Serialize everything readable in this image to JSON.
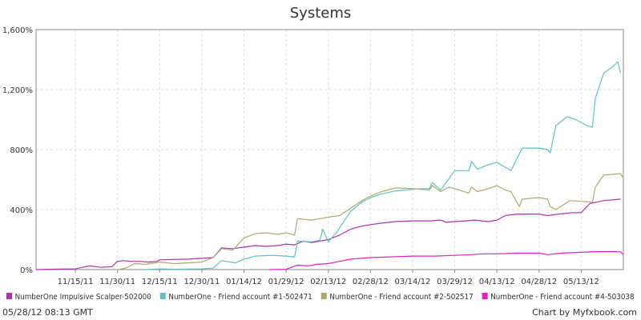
{
  "chart_data": {
    "type": "line",
    "title": "Systems",
    "xlabel": "",
    "ylabel": "",
    "x_tick_labels": [
      "11/15/11",
      "11/30/11",
      "12/15/11",
      "12/30/11",
      "01/14/12",
      "01/29/12",
      "02/13/12",
      "02/28/12",
      "03/14/12",
      "03/29/12",
      "04/13/12",
      "04/28/12",
      "05/13/12"
    ],
    "y_tick_values": [
      0,
      400,
      800,
      1200,
      1600
    ],
    "y_tick_labels": [
      "0%",
      "400%",
      "800%",
      "1,200%",
      "1,600%"
    ],
    "ylim": [
      0,
      1600
    ],
    "x_range": [
      "11/01/11",
      "05/28/12"
    ],
    "grid": true,
    "legend_position": "bottom",
    "series": [
      {
        "name": "NumberOne Impulsive Scalper-502000",
        "color": "#b030b0",
        "points": [
          [
            "11/01/11",
            0
          ],
          [
            "11/05/11",
            2
          ],
          [
            "11/10/11",
            3
          ],
          [
            "11/15/11",
            5
          ],
          [
            "11/20/11",
            25
          ],
          [
            "11/24/11",
            15
          ],
          [
            "11/28/11",
            20
          ],
          [
            "11/30/11",
            55
          ],
          [
            "12/02/11",
            60
          ],
          [
            "12/05/11",
            55
          ],
          [
            "12/08/11",
            55
          ],
          [
            "12/11/11",
            50
          ],
          [
            "12/14/11",
            55
          ],
          [
            "12/15/11",
            65
          ],
          [
            "12/20/11",
            68
          ],
          [
            "12/25/11",
            70
          ],
          [
            "12/30/11",
            75
          ],
          [
            "01/03/12",
            80
          ],
          [
            "01/06/12",
            145
          ],
          [
            "01/10/12",
            140
          ],
          [
            "01/14/12",
            150
          ],
          [
            "01/18/12",
            160
          ],
          [
            "01/22/12",
            155
          ],
          [
            "01/26/12",
            160
          ],
          [
            "01/29/12",
            170
          ],
          [
            "02/01/12",
            165
          ],
          [
            "02/04/12",
            190
          ],
          [
            "02/07/12",
            180
          ],
          [
            "02/10/12",
            190
          ],
          [
            "02/13/12",
            200
          ],
          [
            "02/17/12",
            230
          ],
          [
            "02/21/12",
            270
          ],
          [
            "02/25/12",
            290
          ],
          [
            "02/28/12",
            300
          ],
          [
            "03/03/12",
            310
          ],
          [
            "03/08/12",
            320
          ],
          [
            "03/14/12",
            325
          ],
          [
            "03/20/12",
            325
          ],
          [
            "03/24/12",
            330
          ],
          [
            "03/26/12",
            315
          ],
          [
            "03/29/12",
            320
          ],
          [
            "04/02/12",
            325
          ],
          [
            "04/05/12",
            330
          ],
          [
            "04/10/12",
            320
          ],
          [
            "04/13/12",
            330
          ],
          [
            "04/16/12",
            360
          ],
          [
            "04/20/12",
            370
          ],
          [
            "04/24/12",
            370
          ],
          [
            "04/28/12",
            370
          ],
          [
            "05/01/12",
            360
          ],
          [
            "05/05/12",
            370
          ],
          [
            "05/10/12",
            380
          ],
          [
            "05/13/12",
            380
          ],
          [
            "05/16/12",
            440
          ],
          [
            "05/21/12",
            460
          ],
          [
            "05/27/12",
            470
          ]
        ]
      },
      {
        "name": "NumberOne - Friend account #1-502471",
        "color": "#60c0c0",
        "points": [
          [
            "12/10/11",
            0
          ],
          [
            "12/15/11",
            5
          ],
          [
            "12/20/11",
            2
          ],
          [
            "12/30/11",
            5
          ],
          [
            "01/03/12",
            10
          ],
          [
            "01/06/12",
            60
          ],
          [
            "01/11/12",
            45
          ],
          [
            "01/14/12",
            70
          ],
          [
            "01/18/12",
            90
          ],
          [
            "01/24/12",
            95
          ],
          [
            "01/29/12",
            90
          ],
          [
            "02/01/12",
            85
          ],
          [
            "02/02/12",
            190
          ],
          [
            "02/07/12",
            185
          ],
          [
            "02/10/12",
            195
          ],
          [
            "02/11/12",
            270
          ],
          [
            "02/13/12",
            185
          ],
          [
            "02/16/12",
            250
          ],
          [
            "02/21/12",
            390
          ],
          [
            "02/25/12",
            450
          ],
          [
            "02/28/12",
            480
          ],
          [
            "03/03/12",
            505
          ],
          [
            "03/08/12",
            525
          ],
          [
            "03/14/12",
            535
          ],
          [
            "03/17/12",
            540
          ],
          [
            "03/20/12",
            540
          ],
          [
            "03/21/12",
            580
          ],
          [
            "03/24/12",
            530
          ],
          [
            "03/29/12",
            660
          ],
          [
            "04/03/12",
            660
          ],
          [
            "04/04/12",
            720
          ],
          [
            "04/06/12",
            670
          ],
          [
            "04/10/12",
            700
          ],
          [
            "04/13/12",
            715
          ],
          [
            "04/18/12",
            660
          ],
          [
            "04/22/12",
            810
          ],
          [
            "04/28/12",
            810
          ],
          [
            "05/01/12",
            800
          ],
          [
            "05/02/12",
            780
          ],
          [
            "05/04/12",
            960
          ],
          [
            "05/08/12",
            1020
          ],
          [
            "05/11/12",
            1000
          ],
          [
            "05/15/12",
            960
          ],
          [
            "05/17/12",
            950
          ],
          [
            "05/18/12",
            1140
          ],
          [
            "05/21/12",
            1310
          ],
          [
            "05/24/12",
            1350
          ],
          [
            "05/26/12",
            1385
          ],
          [
            "05/27/12",
            1310
          ]
        ]
      },
      {
        "name": "NumberOne - Friend account #2-502517",
        "color": "#b0a870",
        "points": [
          [
            "11/30/11",
            0
          ],
          [
            "12/03/11",
            10
          ],
          [
            "12/06/11",
            40
          ],
          [
            "12/10/11",
            35
          ],
          [
            "12/15/11",
            50
          ],
          [
            "12/20/11",
            40
          ],
          [
            "12/25/11",
            45
          ],
          [
            "12/30/11",
            50
          ],
          [
            "01/03/12",
            80
          ],
          [
            "01/06/12",
            140
          ],
          [
            "01/10/12",
            130
          ],
          [
            "01/14/12",
            210
          ],
          [
            "01/18/12",
            240
          ],
          [
            "01/22/12",
            245
          ],
          [
            "01/26/12",
            235
          ],
          [
            "01/29/12",
            245
          ],
          [
            "02/01/12",
            230
          ],
          [
            "02/02/12",
            340
          ],
          [
            "02/07/12",
            330
          ],
          [
            "02/10/12",
            340
          ],
          [
            "02/13/12",
            350
          ],
          [
            "02/17/12",
            360
          ],
          [
            "02/21/12",
            410
          ],
          [
            "02/25/12",
            460
          ],
          [
            "02/28/12",
            490
          ],
          [
            "03/03/12",
            520
          ],
          [
            "03/08/12",
            545
          ],
          [
            "03/14/12",
            540
          ],
          [
            "03/20/12",
            530
          ],
          [
            "03/21/12",
            560
          ],
          [
            "03/24/12",
            520
          ],
          [
            "03/27/12",
            550
          ],
          [
            "03/29/12",
            540
          ],
          [
            "04/03/12",
            510
          ],
          [
            "04/04/12",
            550
          ],
          [
            "04/06/12",
            520
          ],
          [
            "04/10/12",
            540
          ],
          [
            "04/13/12",
            560
          ],
          [
            "04/16/12",
            530
          ],
          [
            "04/18/12",
            520
          ],
          [
            "04/21/12",
            420
          ],
          [
            "04/22/12",
            470
          ],
          [
            "04/28/12",
            480
          ],
          [
            "05/01/12",
            470
          ],
          [
            "05/02/12",
            420
          ],
          [
            "05/04/12",
            400
          ],
          [
            "05/09/12",
            460
          ],
          [
            "05/13/12",
            455
          ],
          [
            "05/17/12",
            450
          ],
          [
            "05/18/12",
            550
          ],
          [
            "05/21/12",
            630
          ],
          [
            "05/27/12",
            640
          ],
          [
            "05/28/12",
            610
          ]
        ]
      },
      {
        "name": "NumberOne - Friend account #4-503038",
        "color": "#e020c0",
        "points": [
          [
            "01/23/12",
            0
          ],
          [
            "01/29/12",
            2
          ],
          [
            "02/02/12",
            30
          ],
          [
            "02/06/12",
            25
          ],
          [
            "02/09/12",
            35
          ],
          [
            "02/13/12",
            40
          ],
          [
            "02/17/12",
            55
          ],
          [
            "02/21/12",
            70
          ],
          [
            "02/28/12",
            80
          ],
          [
            "03/06/12",
            85
          ],
          [
            "03/14/12",
            90
          ],
          [
            "03/22/12",
            90
          ],
          [
            "03/29/12",
            95
          ],
          [
            "04/04/12",
            100
          ],
          [
            "04/08/12",
            105
          ],
          [
            "04/13/12",
            105
          ],
          [
            "04/20/12",
            110
          ],
          [
            "04/28/12",
            110
          ],
          [
            "05/01/12",
            100
          ],
          [
            "05/06/12",
            110
          ],
          [
            "05/13/12",
            115
          ],
          [
            "05/18/12",
            120
          ],
          [
            "05/24/12",
            120
          ],
          [
            "05/27/12",
            118
          ],
          [
            "05/28/12",
            100
          ]
        ]
      }
    ]
  },
  "footer": {
    "timestamp": "05/28/12 08:13 GMT",
    "credit": "Chart by Myfxbook.com"
  }
}
